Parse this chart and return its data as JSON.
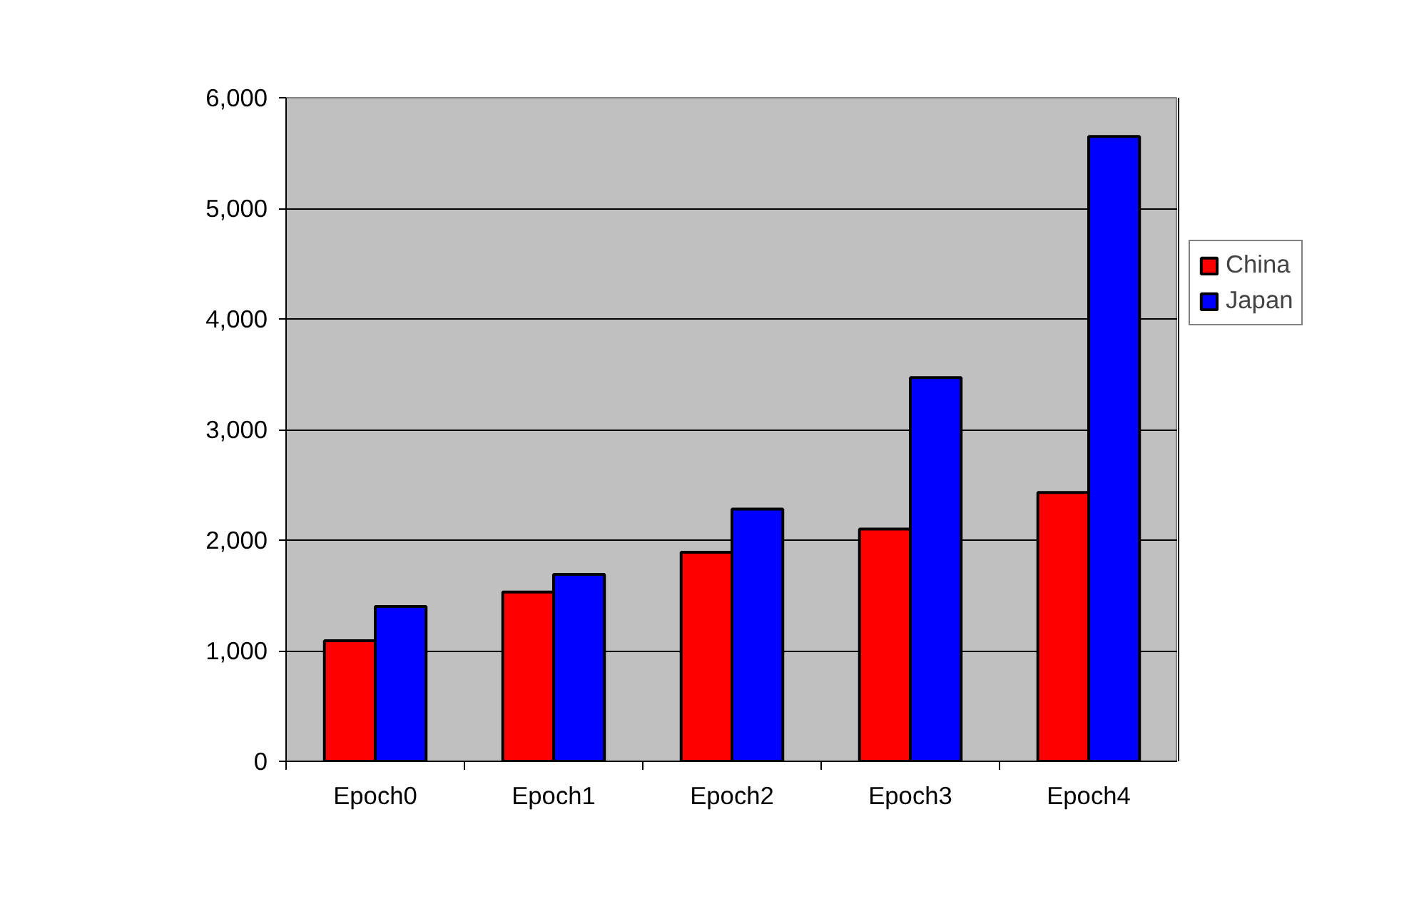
{
  "chart_data": {
    "type": "bar",
    "categories": [
      "Epoch0",
      "Epoch1",
      "Epoch2",
      "Epoch3",
      "Epoch4"
    ],
    "series": [
      {
        "name": "China",
        "color": "#ff0000",
        "values": [
          1090,
          1530,
          1890,
          2100,
          2430
        ]
      },
      {
        "name": "Japan",
        "color": "#0000ff",
        "values": [
          1400,
          1690,
          2280,
          3470,
          5650
        ]
      }
    ],
    "ylim": [
      0,
      6000
    ],
    "yticks": [
      0,
      {
        "value": 1000,
        "label": "1,000"
      },
      {
        "value": 2000,
        "label": "2,000"
      },
      {
        "value": 3000,
        "label": "3,000"
      },
      {
        "value": 4000,
        "label": "4,000"
      },
      {
        "value": 5000,
        "label": "5,000"
      },
      {
        "value": 6000,
        "label": "6,000"
      }
    ],
    "grid": "y",
    "legend": "right"
  }
}
